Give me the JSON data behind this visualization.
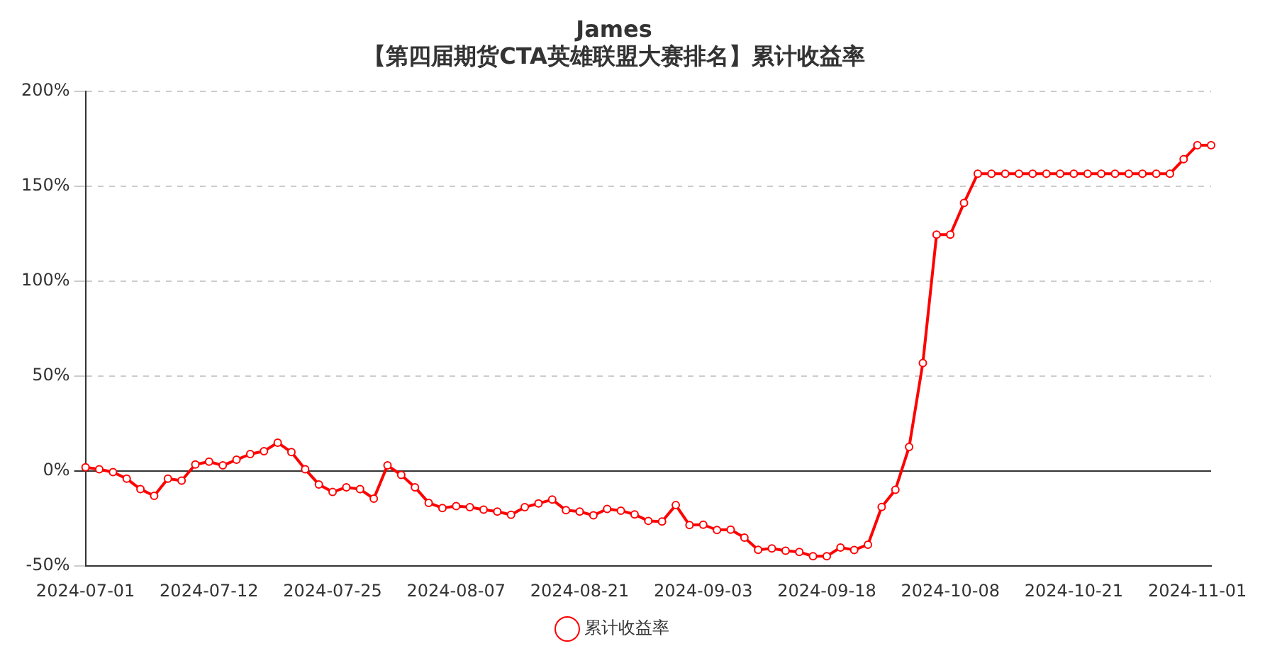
{
  "chart_data": {
    "type": "line",
    "title": "James",
    "subtitle": "【第四届期货CTA英雄联盟大赛排名】累计收益率",
    "categories": [
      "2024-07-01",
      null,
      null,
      null,
      null,
      null,
      null,
      null,
      null,
      "2024-07-12",
      null,
      null,
      null,
      null,
      null,
      null,
      null,
      null,
      "2024-07-25",
      null,
      null,
      null,
      null,
      null,
      null,
      null,
      null,
      "2024-08-07",
      null,
      null,
      null,
      null,
      null,
      null,
      null,
      null,
      "2024-08-21",
      null,
      null,
      null,
      null,
      null,
      null,
      null,
      null,
      "2024-09-03",
      null,
      null,
      null,
      null,
      null,
      null,
      null,
      null,
      "2024-09-18",
      null,
      null,
      null,
      null,
      null,
      null,
      null,
      null,
      "2024-10-08",
      null,
      null,
      null,
      null,
      null,
      null,
      null,
      null,
      "2024-10-21",
      null,
      null,
      null,
      null,
      null,
      null,
      null,
      null,
      "2024-11-01",
      null
    ],
    "series": [
      {
        "name": "累计收益率",
        "color": "#ff0000",
        "values": [
          2,
          1,
          -0.5,
          -4,
          -9.5,
          -13,
          -4,
          -5,
          3.5,
          5,
          3,
          6,
          9,
          10.5,
          15,
          10,
          1,
          -7,
          -11,
          -8.5,
          -9.5,
          -14.5,
          3,
          -2,
          -8.5,
          -16.7,
          -19.4,
          -18.4,
          -19,
          -20.3,
          -21.3,
          -23,
          -19,
          -17,
          -15,
          -20.6,
          -21.3,
          -23.3,
          -19.9,
          -20.8,
          -22.8,
          -26.2,
          -26.5,
          -17.9,
          -28.4,
          -28.2,
          -31,
          -30.8,
          -35,
          -41.4,
          -40.7,
          -41.9,
          -42.6,
          -44.8,
          -44.8,
          -40.2,
          -41.5,
          -38.7,
          -18.9,
          -9.8,
          12.7,
          56.9,
          124.5,
          124.5,
          141.2,
          156.6,
          156.6,
          156.6,
          156.6,
          156.6,
          156.6,
          156.6,
          156.6,
          156.6,
          156.6,
          156.6,
          156.6,
          156.6,
          156.6,
          156.6,
          164.2,
          171.6,
          171.6
        ]
      }
    ],
    "ylim": [
      -50,
      200
    ],
    "yticks": [
      {
        "value": -50,
        "label": "-50%"
      },
      {
        "value": 0,
        "label": "0%"
      },
      {
        "value": 50,
        "label": "50%"
      },
      {
        "value": 100,
        "label": "100%"
      },
      {
        "value": 150,
        "label": "150%"
      },
      {
        "value": 200,
        "label": "200%"
      }
    ],
    "grid": "y",
    "legend": "bottom",
    "marker": "circle",
    "line_style": "solid"
  }
}
